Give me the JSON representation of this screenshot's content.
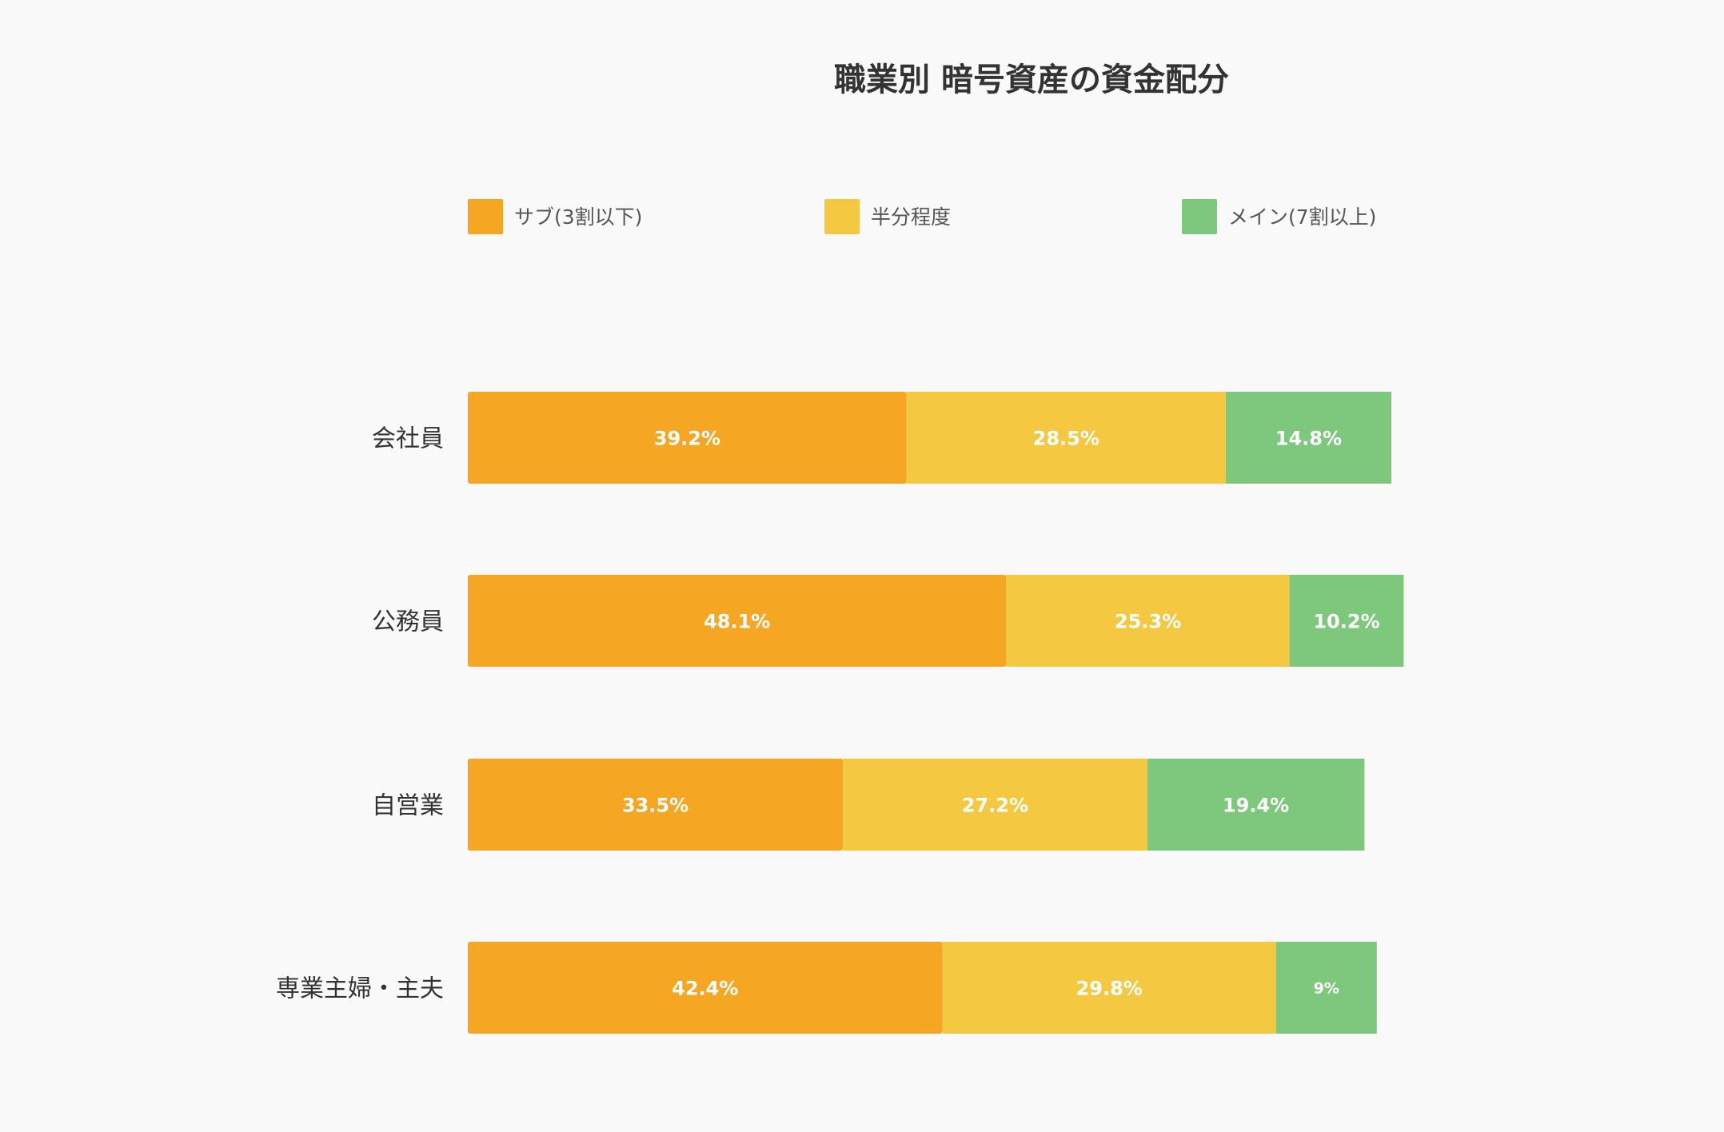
{
  "chart_data": {
    "type": "bar",
    "orientation": "horizontal",
    "stacked": true,
    "title": "職業別 暗号資産の資金配分",
    "categories": [
      "会社員",
      "公務員",
      "自営業",
      "専業主婦・主夫"
    ],
    "series": [
      {
        "name": "サブ(3割以下)",
        "color": "#f5a623",
        "values": [
          39.2,
          48.1,
          33.5,
          42.4
        ],
        "labels": [
          "39.2%",
          "48.1%",
          "33.5%",
          "42.4%"
        ]
      },
      {
        "name": "半分程度",
        "color": "#f5c842",
        "values": [
          28.5,
          25.3,
          27.2,
          29.8
        ],
        "labels": [
          "28.5%",
          "25.3%",
          "27.2%",
          "29.8%"
        ]
      },
      {
        "name": "メイン(7割以上)",
        "color": "#7ec87e",
        "values": [
          14.8,
          10.2,
          19.4,
          9
        ],
        "labels": [
          "14.8%",
          "10.2%",
          "19.4%",
          "9%"
        ]
      }
    ],
    "xlim": [
      0,
      100
    ],
    "legend_position": "top",
    "grid": false
  }
}
